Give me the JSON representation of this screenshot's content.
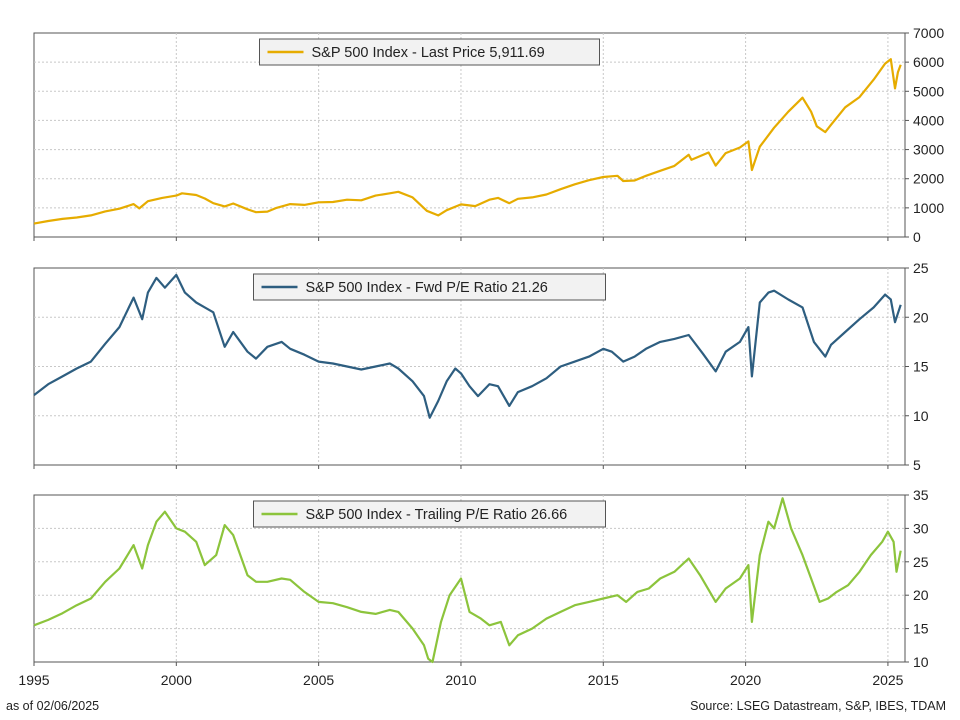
{
  "chart_data": [
    {
      "type": "line",
      "title": "",
      "ylim": [
        0,
        7000
      ],
      "yticks": [
        0,
        1000,
        2000,
        3000,
        4000,
        5000,
        6000,
        7000
      ],
      "grid": true,
      "legend_position": "top-center",
      "series": [
        {
          "name": "S&P 500 Index - Last Price 5,911.69",
          "color": "#e6ac00",
          "x": [
            1995.0,
            1995.5,
            1996.0,
            1996.5,
            1997.0,
            1997.5,
            1998.0,
            1998.5,
            1998.7,
            1999.0,
            1999.5,
            2000.0,
            2000.2,
            2000.7,
            2001.0,
            2001.3,
            2001.7,
            2002.0,
            2002.5,
            2002.8,
            2003.2,
            2003.5,
            2004.0,
            2004.5,
            2005.0,
            2005.5,
            2006.0,
            2006.5,
            2007.0,
            2007.5,
            2007.8,
            2008.3,
            2008.8,
            2009.2,
            2009.5,
            2010.0,
            2010.5,
            2011.0,
            2011.3,
            2011.7,
            2012.0,
            2012.5,
            2013.0,
            2013.5,
            2014.0,
            2014.5,
            2015.0,
            2015.5,
            2015.7,
            2016.1,
            2016.5,
            2017.0,
            2017.5,
            2018.0,
            2018.1,
            2018.7,
            2018.95,
            2019.3,
            2019.8,
            2020.1,
            2020.22,
            2020.5,
            2021.0,
            2021.5,
            2022.0,
            2022.3,
            2022.5,
            2022.8,
            2023.0,
            2023.5,
            2024.0,
            2024.5,
            2024.9,
            2025.1,
            2025.25,
            2025.35,
            2025.45
          ],
          "values": [
            460,
            550,
            620,
            670,
            740,
            880,
            970,
            1130,
            980,
            1230,
            1340,
            1420,
            1500,
            1440,
            1320,
            1160,
            1050,
            1150,
            950,
            850,
            870,
            990,
            1130,
            1100,
            1190,
            1200,
            1280,
            1260,
            1420,
            1500,
            1550,
            1360,
            900,
            740,
            920,
            1120,
            1060,
            1280,
            1340,
            1160,
            1310,
            1360,
            1460,
            1640,
            1810,
            1950,
            2060,
            2100,
            1920,
            1940,
            2100,
            2270,
            2440,
            2820,
            2650,
            2900,
            2450,
            2880,
            3070,
            3280,
            2300,
            3100,
            3750,
            4300,
            4780,
            4300,
            3800,
            3600,
            3850,
            4450,
            4800,
            5400,
            5950,
            6100,
            5100,
            5650,
            5910
          ]
        }
      ]
    },
    {
      "type": "line",
      "title": "",
      "ylim": [
        5,
        25
      ],
      "yticks": [
        5,
        10,
        15,
        20,
        25
      ],
      "grid": true,
      "legend_position": "top-center",
      "series": [
        {
          "name": "S&P 500 Index - Fwd P/E Ratio 21.26",
          "color": "#2e5e80",
          "x": [
            1995.0,
            1995.5,
            1996.0,
            1996.5,
            1997.0,
            1997.5,
            1998.0,
            1998.5,
            1998.8,
            1999.0,
            1999.3,
            1999.6,
            2000.0,
            2000.3,
            2000.7,
            2001.0,
            2001.3,
            2001.7,
            2002.0,
            2002.5,
            2002.8,
            2003.2,
            2003.7,
            2004.0,
            2004.5,
            2005.0,
            2005.5,
            2006.0,
            2006.5,
            2007.0,
            2007.5,
            2007.8,
            2008.3,
            2008.7,
            2008.9,
            2009.2,
            2009.5,
            2009.8,
            2010.0,
            2010.3,
            2010.6,
            2011.0,
            2011.3,
            2011.7,
            2012.0,
            2012.5,
            2013.0,
            2013.5,
            2014.0,
            2014.5,
            2015.0,
            2015.3,
            2015.7,
            2016.1,
            2016.5,
            2017.0,
            2017.5,
            2018.0,
            2018.5,
            2018.95,
            2019.3,
            2019.8,
            2020.1,
            2020.22,
            2020.5,
            2020.8,
            2021.0,
            2021.5,
            2022.0,
            2022.4,
            2022.8,
            2023.0,
            2023.5,
            2024.0,
            2024.5,
            2024.9,
            2025.1,
            2025.25,
            2025.45
          ],
          "values": [
            12.1,
            13.2,
            14.0,
            14.8,
            15.5,
            17.3,
            19.0,
            22.0,
            19.8,
            22.5,
            24.0,
            23.0,
            24.3,
            22.5,
            21.5,
            21.0,
            20.5,
            17.0,
            18.5,
            16.5,
            15.8,
            17.0,
            17.5,
            16.8,
            16.2,
            15.5,
            15.3,
            15.0,
            14.7,
            15.0,
            15.3,
            14.8,
            13.5,
            12.0,
            9.8,
            11.5,
            13.5,
            14.8,
            14.3,
            13.0,
            12.0,
            13.2,
            13.0,
            11.0,
            12.4,
            13.0,
            13.8,
            15.0,
            15.5,
            16.0,
            16.8,
            16.5,
            15.5,
            16.0,
            16.8,
            17.5,
            17.8,
            18.2,
            16.3,
            14.5,
            16.5,
            17.5,
            19.0,
            14.0,
            21.5,
            22.5,
            22.7,
            21.8,
            21.0,
            17.5,
            16.0,
            17.2,
            18.5,
            19.8,
            21.0,
            22.3,
            21.8,
            19.5,
            21.26
          ]
        }
      ]
    },
    {
      "type": "line",
      "title": "",
      "xlim": [
        1995,
        2025.6
      ],
      "xticks": [
        1995,
        2000,
        2005,
        2010,
        2015,
        2020,
        2025
      ],
      "ylim": [
        10,
        35
      ],
      "yticks": [
        10,
        15,
        20,
        25,
        30,
        35
      ],
      "grid": true,
      "legend_position": "top-center",
      "series": [
        {
          "name": "S&P 500 Index - Trailing P/E Ratio 26.66",
          "color": "#8cc43c",
          "x": [
            1995.0,
            1995.5,
            1996.0,
            1996.5,
            1997.0,
            1997.5,
            1998.0,
            1998.5,
            1998.8,
            1999.0,
            1999.3,
            1999.6,
            2000.0,
            2000.3,
            2000.7,
            2001.0,
            2001.4,
            2001.7,
            2002.0,
            2002.5,
            2002.8,
            2003.2,
            2003.7,
            2004.0,
            2004.5,
            2005.0,
            2005.5,
            2006.0,
            2006.5,
            2007.0,
            2007.5,
            2007.8,
            2008.3,
            2008.7,
            2008.85,
            2009.0,
            2009.3,
            2009.6,
            2010.0,
            2010.3,
            2010.7,
            2011.0,
            2011.4,
            2011.7,
            2012.0,
            2012.5,
            2013.0,
            2013.5,
            2014.0,
            2014.5,
            2015.0,
            2015.5,
            2015.8,
            2016.2,
            2016.6,
            2017.0,
            2017.5,
            2018.0,
            2018.4,
            2018.95,
            2019.3,
            2019.8,
            2020.1,
            2020.22,
            2020.5,
            2020.8,
            2021.0,
            2021.3,
            2021.6,
            2022.0,
            2022.3,
            2022.6,
            2022.9,
            2023.2,
            2023.6,
            2024.0,
            2024.4,
            2024.8,
            2025.0,
            2025.2,
            2025.3,
            2025.45
          ],
          "values": [
            15.5,
            16.3,
            17.3,
            18.5,
            19.5,
            22.0,
            24.0,
            27.5,
            24.0,
            27.5,
            31.0,
            32.5,
            30.0,
            29.5,
            28.0,
            24.5,
            26.0,
            30.5,
            29.0,
            23.0,
            22.0,
            22.0,
            22.5,
            22.3,
            20.5,
            19.0,
            18.8,
            18.2,
            17.5,
            17.2,
            17.8,
            17.5,
            15.0,
            12.5,
            10.5,
            10.0,
            16.0,
            20.0,
            22.5,
            17.5,
            16.5,
            15.5,
            16.0,
            12.5,
            14.0,
            15.0,
            16.5,
            17.5,
            18.5,
            19.0,
            19.5,
            20.0,
            19.0,
            20.5,
            21.0,
            22.5,
            23.5,
            25.5,
            23.0,
            19.0,
            21.0,
            22.5,
            24.5,
            16.0,
            26.0,
            31.0,
            30.0,
            34.5,
            30.0,
            26.0,
            22.5,
            19.0,
            19.5,
            20.5,
            21.5,
            23.5,
            26.0,
            28.0,
            29.5,
            28.0,
            23.5,
            26.66
          ]
        }
      ]
    }
  ],
  "footer": {
    "as_of": "as of 02/06/2025",
    "source": "Source: LSEG Datastream, S&P, IBES, TDAM"
  }
}
